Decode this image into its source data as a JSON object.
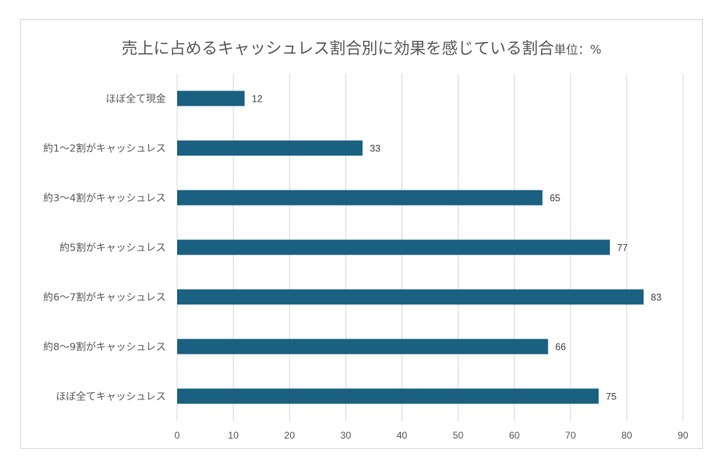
{
  "chart_data": {
    "type": "bar",
    "orientation": "horizontal",
    "title": "売上に占めるキャッシュレス割合別に効果を感じている割合",
    "title_unit": "単位：%",
    "categories": [
      "ほぼ全て現金",
      "約1～2割がキャッシュレス",
      "約3～4割がキャッシュレス",
      "約5割がキャッシュレス",
      "約6～7割がキャッシュレス",
      "約8～9割がキャッシュレス",
      "ほぼ全てキャッシュレス"
    ],
    "values": [
      12,
      33,
      65,
      77,
      83,
      66,
      75
    ],
    "xlim": [
      0,
      90
    ],
    "xticks": [
      0,
      10,
      20,
      30,
      40,
      50,
      60,
      70,
      80,
      90
    ],
    "grid": true,
    "legend": "none",
    "bar_color": "#1a6080",
    "grid_color": "#d9d9d9"
  }
}
